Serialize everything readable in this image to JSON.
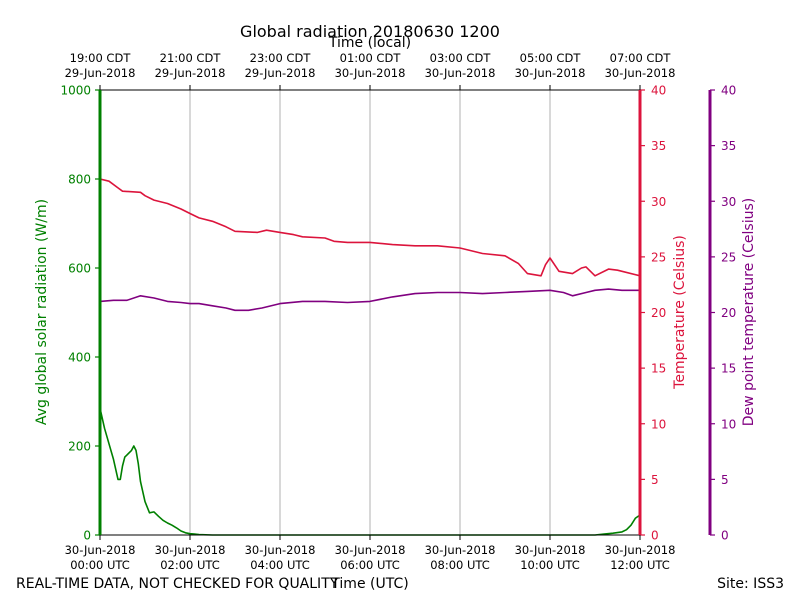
{
  "chart_data": {
    "type": "line",
    "title": "Global radiation 20180630 1200",
    "top_xlabel": "Time (local)",
    "xlabel": "Time (UTC)",
    "footer_left": "REAL-TIME DATA, NOT CHECKED FOR QUALITY",
    "footer_right": "Site: ISS3",
    "xlim_hours_utc": [
      0,
      12
    ],
    "bottom_ticks": [
      {
        "hour": 0,
        "line1": "30-Jun-2018",
        "line2": "00:00 UTC"
      },
      {
        "hour": 2,
        "line1": "30-Jun-2018",
        "line2": "02:00 UTC"
      },
      {
        "hour": 4,
        "line1": "30-Jun-2018",
        "line2": "04:00 UTC"
      },
      {
        "hour": 6,
        "line1": "30-Jun-2018",
        "line2": "06:00 UTC"
      },
      {
        "hour": 8,
        "line1": "30-Jun-2018",
        "line2": "08:00 UTC"
      },
      {
        "hour": 10,
        "line1": "30-Jun-2018",
        "line2": "10:00 UTC"
      },
      {
        "hour": 12,
        "line1": "30-Jun-2018",
        "line2": "12:00 UTC"
      }
    ],
    "top_ticks": [
      {
        "hour": 0,
        "line1": "19:00 CDT",
        "line2": "29-Jun-2018"
      },
      {
        "hour": 2,
        "line1": "21:00 CDT",
        "line2": "29-Jun-2018"
      },
      {
        "hour": 4,
        "line1": "23:00 CDT",
        "line2": "29-Jun-2018"
      },
      {
        "hour": 6,
        "line1": "01:00 CDT",
        "line2": "30-Jun-2018"
      },
      {
        "hour": 8,
        "line1": "03:00 CDT",
        "line2": "30-Jun-2018"
      },
      {
        "hour": 10,
        "line1": "05:00 CDT",
        "line2": "30-Jun-2018"
      },
      {
        "hour": 12,
        "line1": "07:00 CDT",
        "line2": "30-Jun-2018"
      }
    ],
    "grid_x": true,
    "axes": {
      "left": {
        "label": "Avg global solar radiation (W/m)",
        "ylim": [
          0,
          1000
        ],
        "ticks": [
          0,
          200,
          400,
          600,
          800,
          1000
        ],
        "color": "#008000"
      },
      "right": {
        "label": "Temperature (Celsius)",
        "ylim": [
          0,
          40
        ],
        "ticks": [
          0,
          5,
          10,
          15,
          20,
          25,
          30,
          35,
          40
        ],
        "color": "#dc143c"
      },
      "far_right": {
        "label": "Dew point temperature (Celsius)",
        "ylim": [
          0,
          40
        ],
        "ticks": [
          0,
          5,
          10,
          15,
          20,
          25,
          30,
          35,
          40
        ],
        "color": "#800080"
      }
    },
    "series": [
      {
        "key": "radiation",
        "axis": "left",
        "color": "#008000",
        "x": [
          0,
          0.1,
          0.2,
          0.3,
          0.4,
          0.45,
          0.5,
          0.55,
          0.6,
          0.7,
          0.75,
          0.8,
          0.85,
          0.9,
          1.0,
          1.1,
          1.2,
          1.3,
          1.4,
          1.5,
          1.6,
          1.7,
          1.8,
          1.9,
          2.0,
          2.1,
          2.2,
          2.5,
          3,
          4,
          5,
          6,
          7,
          8,
          9,
          10,
          11,
          11.2,
          11.4,
          11.6,
          11.7,
          11.8,
          11.9,
          12.0
        ],
        "y": [
          285,
          240,
          205,
          170,
          125,
          125,
          155,
          175,
          180,
          190,
          200,
          190,
          160,
          120,
          75,
          50,
          52,
          42,
          33,
          27,
          22,
          16,
          9,
          5,
          3,
          2,
          1,
          0,
          0,
          0,
          0,
          0,
          0,
          0,
          0,
          0,
          0,
          2,
          4,
          7,
          12,
          22,
          38,
          45
        ]
      },
      {
        "key": "temperature",
        "axis": "right",
        "color": "#dc143c",
        "x": [
          0,
          0.2,
          0.4,
          0.5,
          0.9,
          1.0,
          1.2,
          1.5,
          1.8,
          2.0,
          2.2,
          2.5,
          2.8,
          3.0,
          3.5,
          3.7,
          4.0,
          4.3,
          4.5,
          5.0,
          5.2,
          5.5,
          6.0,
          6.5,
          7.0,
          7.5,
          8.0,
          8.5,
          9.0,
          9.3,
          9.5,
          9.8,
          9.9,
          10.0,
          10.2,
          10.5,
          10.7,
          10.8,
          11.0,
          11.3,
          11.5,
          12.0
        ],
        "y": [
          32.0,
          31.8,
          31.2,
          30.9,
          30.8,
          30.5,
          30.1,
          29.8,
          29.3,
          28.9,
          28.5,
          28.2,
          27.7,
          27.3,
          27.2,
          27.4,
          27.2,
          27.0,
          26.8,
          26.7,
          26.4,
          26.3,
          26.3,
          26.1,
          26.0,
          26.0,
          25.8,
          25.3,
          25.1,
          24.4,
          23.5,
          23.3,
          24.3,
          24.9,
          23.7,
          23.5,
          24.0,
          24.1,
          23.3,
          23.9,
          23.8,
          23.3
        ]
      },
      {
        "key": "dewpoint",
        "axis": "far_right",
        "color": "#800080",
        "x": [
          0,
          0.3,
          0.6,
          0.9,
          1.2,
          1.5,
          1.8,
          2.0,
          2.2,
          2.5,
          2.8,
          3.0,
          3.3,
          3.6,
          4.0,
          4.5,
          5.0,
          5.5,
          6.0,
          6.5,
          7.0,
          7.5,
          8.0,
          8.5,
          9.0,
          9.5,
          10.0,
          10.3,
          10.5,
          10.8,
          11.0,
          11.3,
          11.6,
          12.0
        ],
        "y": [
          21.0,
          21.1,
          21.1,
          21.5,
          21.3,
          21.0,
          20.9,
          20.8,
          20.8,
          20.6,
          20.4,
          20.2,
          20.2,
          20.4,
          20.8,
          21.0,
          21.0,
          20.9,
          21.0,
          21.4,
          21.7,
          21.8,
          21.8,
          21.7,
          21.8,
          21.9,
          22.0,
          21.8,
          21.5,
          21.8,
          22.0,
          22.1,
          22.0,
          22.0
        ]
      }
    ]
  }
}
